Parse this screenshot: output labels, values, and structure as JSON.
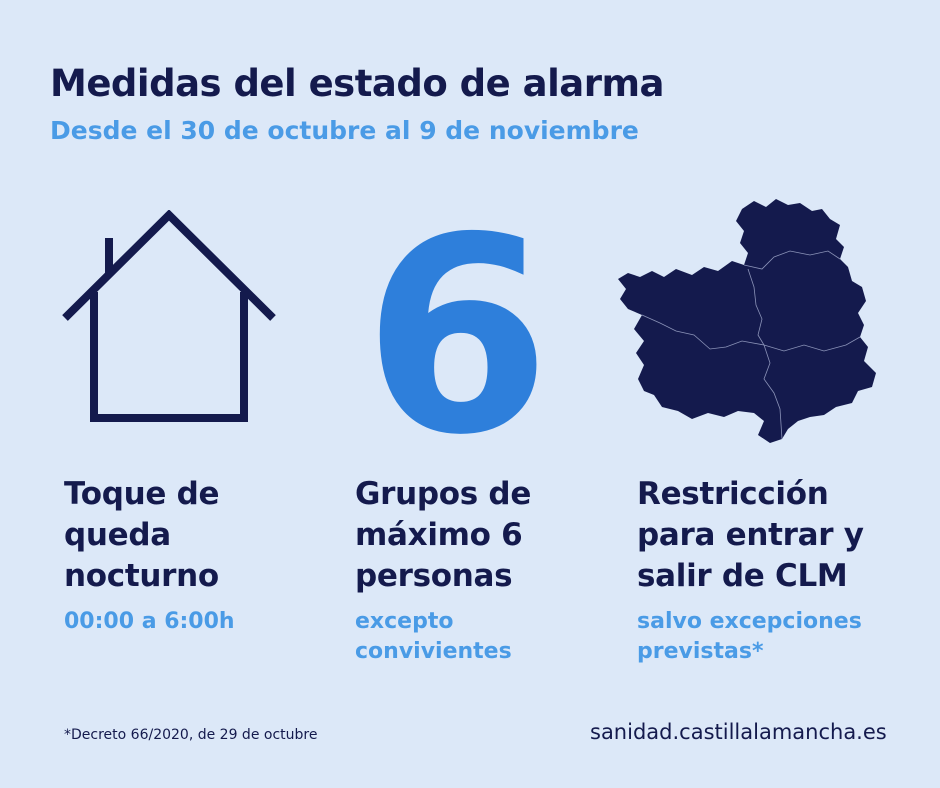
{
  "header": {
    "title": "Medidas del estado de alarma",
    "subtitle": "Desde el 30 de octubre al 9 de noviembre"
  },
  "colors": {
    "background": "#dce8f8",
    "navy": "#141a4d",
    "accent_blue": "#4a9be6",
    "six_blue": "#2e7fdb"
  },
  "icons": [
    "house-icon",
    "number-six-icon",
    "castilla-la-mancha-map-icon"
  ],
  "measures": [
    {
      "title_lines": [
        "Toque de",
        "queda",
        "nocturno"
      ],
      "detail_lines": [
        "00:00 a 6:00h"
      ]
    },
    {
      "icon_text": "6",
      "title_lines": [
        "Grupos de",
        "máximo 6",
        "personas"
      ],
      "detail_lines": [
        "excepto",
        "convivientes"
      ]
    },
    {
      "title_lines": [
        "Restricción",
        "para entrar y",
        "salir de CLM"
      ],
      "detail_lines": [
        "salvo excepciones",
        "previstas*"
      ]
    }
  ],
  "footer": {
    "footnote": "*Decreto 66/2020, de 29 de octubre",
    "website": "sanidad.castillalamancha.es"
  }
}
